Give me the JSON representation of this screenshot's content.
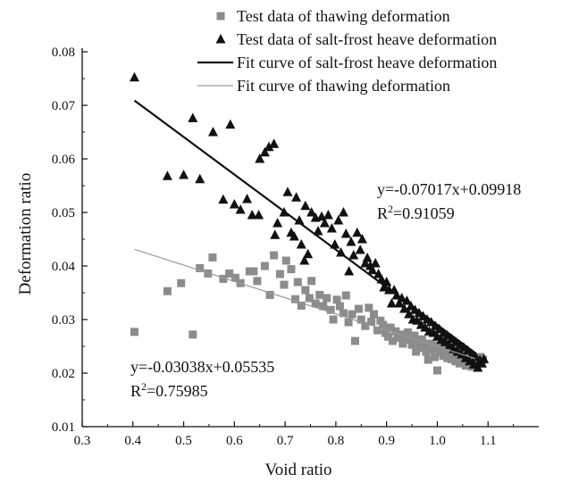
{
  "chart_data": {
    "type": "scatter",
    "xlabel": "Void ratio",
    "ylabel": "Deformation ratio",
    "xlim": [
      0.3,
      1.2
    ],
    "ylim": [
      0.01,
      0.08
    ],
    "x_ticks": [
      "0.3",
      "0.4",
      "0.5",
      "0.6",
      "0.7",
      "0.8",
      "0.9",
      "1.0",
      "1.1"
    ],
    "y_ticks": [
      "0.01",
      "0.02",
      "0.03",
      "0.04",
      "0.05",
      "0.06",
      "0.07",
      "0.08"
    ],
    "grid": false,
    "legend_position": "top-right",
    "series": [
      {
        "name": "Test data of thawing deformation",
        "kind": "scatter",
        "marker": "square",
        "color": "#8c8c8c",
        "points": [
          [
            0.403,
            0.0277
          ],
          [
            0.468,
            0.0353
          ],
          [
            0.495,
            0.0368
          ],
          [
            0.518,
            0.0272
          ],
          [
            0.532,
            0.0396
          ],
          [
            0.548,
            0.0386
          ],
          [
            0.557,
            0.0416
          ],
          [
            0.578,
            0.0376
          ],
          [
            0.59,
            0.0386
          ],
          [
            0.602,
            0.0378
          ],
          [
            0.612,
            0.0368
          ],
          [
            0.63,
            0.039
          ],
          [
            0.638,
            0.039
          ],
          [
            0.645,
            0.0372
          ],
          [
            0.66,
            0.04
          ],
          [
            0.67,
            0.0346
          ],
          [
            0.678,
            0.042
          ],
          [
            0.69,
            0.0385
          ],
          [
            0.698,
            0.0365
          ],
          [
            0.702,
            0.041
          ],
          [
            0.712,
            0.0394
          ],
          [
            0.72,
            0.0338
          ],
          [
            0.725,
            0.037
          ],
          [
            0.732,
            0.0326
          ],
          [
            0.74,
            0.0355
          ],
          [
            0.748,
            0.034
          ],
          [
            0.752,
            0.0372
          ],
          [
            0.76,
            0.033
          ],
          [
            0.768,
            0.0346
          ],
          [
            0.775,
            0.0325
          ],
          [
            0.782,
            0.034
          ],
          [
            0.79,
            0.0318
          ],
          [
            0.795,
            0.03
          ],
          [
            0.802,
            0.0337
          ],
          [
            0.808,
            0.0325
          ],
          [
            0.815,
            0.0312
          ],
          [
            0.82,
            0.0345
          ],
          [
            0.825,
            0.0295
          ],
          [
            0.832,
            0.031
          ],
          [
            0.838,
            0.026
          ],
          [
            0.845,
            0.032
          ],
          [
            0.85,
            0.03
          ],
          [
            0.858,
            0.0288
          ],
          [
            0.865,
            0.0322
          ],
          [
            0.87,
            0.0296
          ],
          [
            0.875,
            0.031
          ],
          [
            0.882,
            0.028
          ],
          [
            0.888,
            0.0298
          ],
          [
            0.893,
            0.029
          ],
          [
            0.898,
            0.0275
          ],
          [
            0.903,
            0.0268
          ],
          [
            0.908,
            0.0285
          ],
          [
            0.912,
            0.026
          ],
          [
            0.918,
            0.0278
          ],
          [
            0.922,
            0.0266
          ],
          [
            0.928,
            0.0272
          ],
          [
            0.932,
            0.0255
          ],
          [
            0.938,
            0.0268
          ],
          [
            0.942,
            0.0276
          ],
          [
            0.947,
            0.0262
          ],
          [
            0.95,
            0.0253
          ],
          [
            0.955,
            0.027
          ],
          [
            0.958,
            0.024
          ],
          [
            0.962,
            0.0258
          ],
          [
            0.966,
            0.0247
          ],
          [
            0.97,
            0.0263
          ],
          [
            0.974,
            0.025
          ],
          [
            0.978,
            0.024
          ],
          [
            0.982,
            0.0225
          ],
          [
            0.985,
            0.0255
          ],
          [
            0.988,
            0.0243
          ],
          [
            0.992,
            0.0252
          ],
          [
            0.995,
            0.023
          ],
          [
            0.998,
            0.0248
          ],
          [
            1.0,
            0.0205
          ],
          [
            1.004,
            0.0238
          ],
          [
            1.008,
            0.025
          ],
          [
            1.012,
            0.0232
          ],
          [
            1.016,
            0.0244
          ],
          [
            1.02,
            0.0228
          ],
          [
            1.024,
            0.0238
          ],
          [
            1.028,
            0.0226
          ],
          [
            1.032,
            0.0236
          ],
          [
            1.036,
            0.0222
          ],
          [
            1.04,
            0.0232
          ],
          [
            1.044,
            0.0218
          ],
          [
            1.048,
            0.023
          ],
          [
            1.052,
            0.0224
          ],
          [
            1.056,
            0.0214
          ],
          [
            1.06,
            0.0226
          ],
          [
            1.064,
            0.022
          ],
          [
            1.068,
            0.0212
          ],
          [
            1.072,
            0.0222
          ],
          [
            1.076,
            0.0216
          ],
          [
            1.08,
            0.022
          ],
          [
            1.085,
            0.023
          ],
          [
            1.09,
            0.0225
          ]
        ]
      },
      {
        "name": "Test data of salt-frost heave deformation",
        "kind": "scatter",
        "marker": "triangle",
        "color": "#111111",
        "points": [
          [
            0.403,
            0.0752
          ],
          [
            0.468,
            0.0568
          ],
          [
            0.5,
            0.057
          ],
          [
            0.518,
            0.0676
          ],
          [
            0.532,
            0.0562
          ],
          [
            0.558,
            0.065
          ],
          [
            0.578,
            0.0524
          ],
          [
            0.592,
            0.0664
          ],
          [
            0.6,
            0.0515
          ],
          [
            0.612,
            0.0505
          ],
          [
            0.625,
            0.0525
          ],
          [
            0.635,
            0.0495
          ],
          [
            0.648,
            0.0495
          ],
          [
            0.65,
            0.06
          ],
          [
            0.66,
            0.0612
          ],
          [
            0.668,
            0.0622
          ],
          [
            0.678,
            0.0628
          ],
          [
            0.68,
            0.0458
          ],
          [
            0.685,
            0.048
          ],
          [
            0.698,
            0.05
          ],
          [
            0.705,
            0.0538
          ],
          [
            0.712,
            0.0462
          ],
          [
            0.718,
            0.0455
          ],
          [
            0.722,
            0.0528
          ],
          [
            0.728,
            0.0485
          ],
          [
            0.732,
            0.044
          ],
          [
            0.738,
            0.041
          ],
          [
            0.74,
            0.0512
          ],
          [
            0.745,
            0.0422
          ],
          [
            0.752,
            0.05
          ],
          [
            0.76,
            0.049
          ],
          [
            0.765,
            0.0465
          ],
          [
            0.772,
            0.0492
          ],
          [
            0.778,
            0.048
          ],
          [
            0.785,
            0.0495
          ],
          [
            0.792,
            0.047
          ],
          [
            0.798,
            0.044
          ],
          [
            0.805,
            0.0485
          ],
          [
            0.81,
            0.0425
          ],
          [
            0.815,
            0.05
          ],
          [
            0.82,
            0.046
          ],
          [
            0.826,
            0.039
          ],
          [
            0.83,
            0.0445
          ],
          [
            0.835,
            0.042
          ],
          [
            0.842,
            0.0462
          ],
          [
            0.848,
            0.043
          ],
          [
            0.852,
            0.045
          ],
          [
            0.858,
            0.0405
          ],
          [
            0.862,
            0.0415
          ],
          [
            0.868,
            0.04
          ],
          [
            0.872,
            0.0392
          ],
          [
            0.878,
            0.0405
          ],
          [
            0.884,
            0.0385
          ],
          [
            0.89,
            0.0375
          ],
          [
            0.895,
            0.036
          ],
          [
            0.9,
            0.037
          ],
          [
            0.905,
            0.0355
          ],
          [
            0.91,
            0.033
          ],
          [
            0.915,
            0.0355
          ],
          [
            0.92,
            0.0345
          ],
          [
            0.925,
            0.033
          ],
          [
            0.93,
            0.034
          ],
          [
            0.935,
            0.032
          ],
          [
            0.94,
            0.0335
          ],
          [
            0.944,
            0.031
          ],
          [
            0.948,
            0.0325
          ],
          [
            0.952,
            0.03
          ],
          [
            0.956,
            0.0318
          ],
          [
            0.96,
            0.0298
          ],
          [
            0.964,
            0.0312
          ],
          [
            0.968,
            0.029
          ],
          [
            0.972,
            0.0306
          ],
          [
            0.976,
            0.0285
          ],
          [
            0.98,
            0.03
          ],
          [
            0.984,
            0.0278
          ],
          [
            0.988,
            0.0295
          ],
          [
            0.992,
            0.0275
          ],
          [
            0.996,
            0.0288
          ],
          [
            1.0,
            0.0268
          ],
          [
            1.004,
            0.0282
          ],
          [
            1.008,
            0.0262
          ],
          [
            1.012,
            0.0275
          ],
          [
            1.016,
            0.0258
          ],
          [
            1.02,
            0.027
          ],
          [
            1.024,
            0.0252
          ],
          [
            1.028,
            0.0264
          ],
          [
            1.032,
            0.0245
          ],
          [
            1.036,
            0.0258
          ],
          [
            1.04,
            0.024
          ],
          [
            1.044,
            0.0252
          ],
          [
            1.048,
            0.0235
          ],
          [
            1.052,
            0.0248
          ],
          [
            1.056,
            0.0228
          ],
          [
            1.06,
            0.0242
          ],
          [
            1.064,
            0.0222
          ],
          [
            1.068,
            0.0236
          ],
          [
            1.072,
            0.0216
          ],
          [
            1.076,
            0.023
          ],
          [
            1.08,
            0.021
          ],
          [
            1.084,
            0.0224
          ],
          [
            1.088,
            0.0218
          ],
          [
            1.092,
            0.0226
          ]
        ]
      },
      {
        "name": "Fit curve of salt-frost heave deformation",
        "kind": "line",
        "color": "#111111",
        "width_hint": "thick",
        "slope": -0.07017,
        "intercept": 0.09918,
        "x_range": [
          0.403,
          1.075
        ]
      },
      {
        "name": "Fit curve of thawing deformation",
        "kind": "line",
        "color": "#9a9a9a",
        "width_hint": "thin",
        "slope": -0.03038,
        "intercept": 0.05535,
        "x_range": [
          0.403,
          1.075
        ]
      }
    ],
    "annotations": [
      {
        "id": "frost-eq",
        "line1": "y=-0.07017x+0.09918",
        "r2_prefix": "R",
        "r2_value": "=0.91059"
      },
      {
        "id": "thaw-eq",
        "line1": "y=-0.03038x+0.05535",
        "r2_prefix": "R",
        "r2_value": "=0.75985"
      }
    ]
  }
}
